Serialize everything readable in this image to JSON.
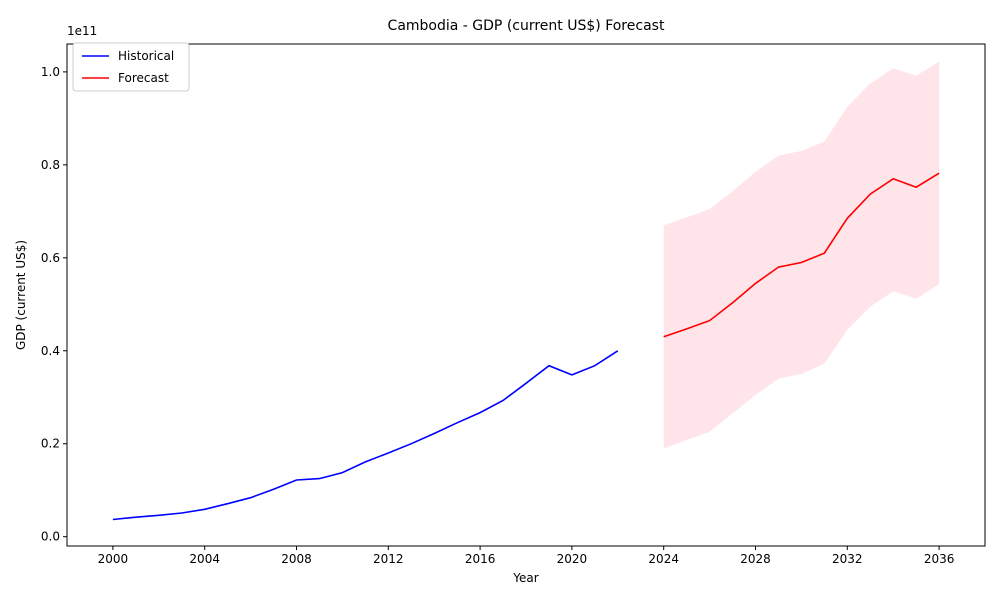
{
  "chart_data": {
    "type": "line",
    "title": "Cambodia - GDP (current US$) Forecast",
    "xlabel": "Year",
    "ylabel": "GDP (current US$)",
    "y_offset_label": "1e11",
    "xlim": [
      1998,
      2038
    ],
    "ylim": [
      -2000000000.0,
      106000000000.0
    ],
    "x_ticks": [
      2000,
      2004,
      2008,
      2012,
      2016,
      2020,
      2024,
      2028,
      2032,
      2036
    ],
    "x_tick_labels": [
      "2000",
      "2004",
      "2008",
      "2012",
      "2016",
      "2020",
      "2024",
      "2028",
      "2032",
      "2036"
    ],
    "y_ticks": [
      0,
      20000000000.0,
      40000000000.0,
      60000000000.0,
      80000000000.0,
      100000000000.0
    ],
    "y_tick_labels": [
      "0.0",
      "0.2",
      "0.4",
      "0.6",
      "0.8",
      "1.0"
    ],
    "grid": false,
    "legend_position": "upper-left",
    "colors": {
      "historical": "#0000ff",
      "forecast": "#ff0000",
      "band": "#ffe4ea"
    },
    "series": [
      {
        "name": "Historical",
        "x": [
          2000,
          2001,
          2002,
          2003,
          2004,
          2005,
          2006,
          2007,
          2008,
          2009,
          2010,
          2011,
          2012,
          2013,
          2014,
          2015,
          2016,
          2017,
          2018,
          2019,
          2020,
          2021,
          2022
        ],
        "y": [
          3700000000.0,
          4200000000.0,
          4600000000.0,
          5100000000.0,
          5900000000.0,
          7100000000.0,
          8400000000.0,
          10200000000.0,
          12200000000.0,
          12500000000.0,
          13800000000.0,
          16100000000.0,
          18000000000.0,
          20000000000.0,
          22200000000.0,
          24500000000.0,
          26700000000.0,
          29300000000.0,
          33000000000.0,
          36800000000.0,
          34800000000.0,
          36800000000.0,
          40000000000.0
        ]
      },
      {
        "name": "Forecast",
        "x": [
          2024,
          2025,
          2026,
          2027,
          2028,
          2029,
          2030,
          2031,
          2032,
          2033,
          2034,
          2035,
          2036
        ],
        "y": [
          43000000000.0,
          44700000000.0,
          46500000000.0,
          50300000000.0,
          54500000000.0,
          58000000000.0,
          59000000000.0,
          61000000000.0,
          68500000000.0,
          73700000000.0,
          77000000000.0,
          75200000000.0,
          78200000000.0
        ],
        "lower": [
          19000000000.0,
          20800000000.0,
          22600000000.0,
          26500000000.0,
          30500000000.0,
          34000000000.0,
          35000000000.0,
          37200000000.0,
          44500000000.0,
          49500000000.0,
          52800000000.0,
          51200000000.0,
          54300000000.0
        ],
        "upper": [
          67000000000.0,
          68700000000.0,
          70500000000.0,
          74300000000.0,
          78500000000.0,
          82000000000.0,
          83000000000.0,
          85000000000.0,
          92500000000.0,
          97500000000.0,
          100800000000.0,
          99200000000.0,
          102200000000.0
        ]
      }
    ]
  }
}
